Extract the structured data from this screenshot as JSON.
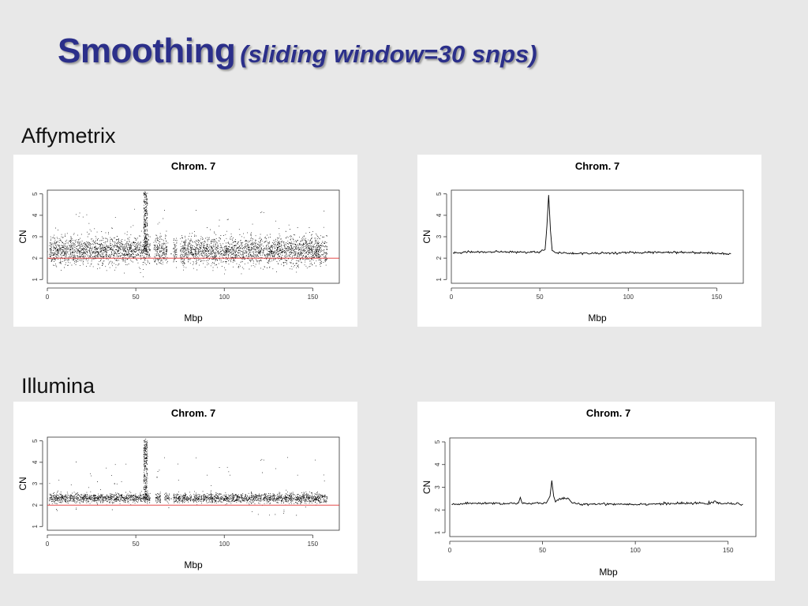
{
  "slide": {
    "title_main": "Smoothing",
    "title_sub": "(sliding window=30 snps)"
  },
  "sections": {
    "affymetrix": "Affymetrix",
    "illumina": "Illumina"
  },
  "colors": {
    "title": "#2b2f8a",
    "baseline": "#e03030",
    "background": "#e8e8e8"
  },
  "chart_data": [
    {
      "id": "affy-raw",
      "type": "scatter",
      "title": "Chrom. 7",
      "xlabel": "Mbp",
      "ylabel": "CN",
      "xlim": [
        0,
        165
      ],
      "ylim": [
        1,
        5
      ],
      "xticks": [
        "0",
        "50",
        "100",
        "150"
      ],
      "yticks": [
        "1",
        "2",
        "3",
        "4",
        "5"
      ],
      "reference_line": 2,
      "point_density": "dense",
      "band": [
        1.7,
        3.0
      ],
      "points": [
        {
          "x": 0,
          "y": 2.3
        },
        {
          "x": 10,
          "y": 2.2
        },
        {
          "x": 20,
          "y": 2.4
        },
        {
          "x": 30,
          "y": 2.3
        },
        {
          "x": 40,
          "y": 2.3
        },
        {
          "x": 50,
          "y": 2.4
        },
        {
          "x": 55,
          "y": 5.0
        },
        {
          "x": 56,
          "y": 4.2
        },
        {
          "x": 62,
          "y": 2.3
        },
        {
          "x": 70,
          "y": 2.2
        },
        {
          "x": 80,
          "y": 2.3
        },
        {
          "x": 100,
          "y": 2.3
        },
        {
          "x": 120,
          "y": 2.3
        },
        {
          "x": 140,
          "y": 2.3
        },
        {
          "x": 158,
          "y": 2.2
        }
      ],
      "gaps": [
        [
          58,
          60
        ],
        [
          68,
          71
        ],
        [
          73,
          75
        ]
      ]
    },
    {
      "id": "affy-smooth",
      "type": "line",
      "title": "Chrom. 7",
      "xlabel": "Mbp",
      "ylabel": "CN",
      "xlim": [
        0,
        165
      ],
      "ylim": [
        1,
        5
      ],
      "xticks": [
        "0",
        "50",
        "100",
        "150"
      ],
      "yticks": [
        "1",
        "2",
        "3",
        "4",
        "5"
      ],
      "x": [
        1,
        10,
        20,
        30,
        40,
        50,
        53,
        54,
        55,
        56,
        57,
        60,
        70,
        80,
        100,
        120,
        140,
        158
      ],
      "y": [
        2.25,
        2.3,
        2.28,
        2.3,
        2.27,
        2.3,
        2.4,
        3.5,
        4.95,
        3.3,
        2.35,
        2.25,
        2.22,
        2.23,
        2.25,
        2.28,
        2.26,
        2.2
      ]
    },
    {
      "id": "illumina-raw",
      "type": "scatter",
      "title": "Chrom. 7",
      "xlabel": "Mbp",
      "ylabel": "CN",
      "xlim": [
        0,
        165
      ],
      "ylim": [
        1,
        5
      ],
      "xticks": [
        "0",
        "50",
        "100",
        "150"
      ],
      "yticks": [
        "1",
        "2",
        "3",
        "4",
        "5"
      ],
      "reference_line": 2,
      "point_density": "dense",
      "band": [
        2.1,
        2.55
      ],
      "points": [
        {
          "x": 0,
          "y": 2.3
        },
        {
          "x": 20,
          "y": 2.35
        },
        {
          "x": 38,
          "y": 3.0
        },
        {
          "x": 50,
          "y": 2.3
        },
        {
          "x": 55,
          "y": 4.8
        },
        {
          "x": 56,
          "y": 4.0
        },
        {
          "x": 62,
          "y": 3.3
        },
        {
          "x": 70,
          "y": 2.3
        },
        {
          "x": 100,
          "y": 2.3
        },
        {
          "x": 130,
          "y": 2.3
        },
        {
          "x": 158,
          "y": 2.3
        }
      ],
      "gaps": [
        [
          58,
          61
        ],
        [
          64,
          66
        ],
        [
          69,
          71
        ]
      ]
    },
    {
      "id": "illumina-smooth",
      "type": "line",
      "title": "Chrom. 7",
      "xlabel": "Mbp",
      "ylabel": "CN",
      "xlim": [
        0,
        165
      ],
      "ylim": [
        1,
        5
      ],
      "xticks": [
        "0",
        "50",
        "100",
        "150"
      ],
      "yticks": [
        "1",
        "2",
        "3",
        "4",
        "5"
      ],
      "x": [
        1,
        10,
        20,
        30,
        37,
        38,
        39,
        45,
        52,
        54,
        55,
        56,
        57,
        59,
        62,
        64,
        66,
        70,
        80,
        100,
        120,
        142,
        143,
        144,
        158
      ],
      "y": [
        2.25,
        2.28,
        2.3,
        2.28,
        2.3,
        2.55,
        2.3,
        2.28,
        2.3,
        2.6,
        3.3,
        2.6,
        2.35,
        2.5,
        2.5,
        2.5,
        2.3,
        2.25,
        2.27,
        2.25,
        2.28,
        2.3,
        2.4,
        2.3,
        2.25
      ]
    }
  ]
}
